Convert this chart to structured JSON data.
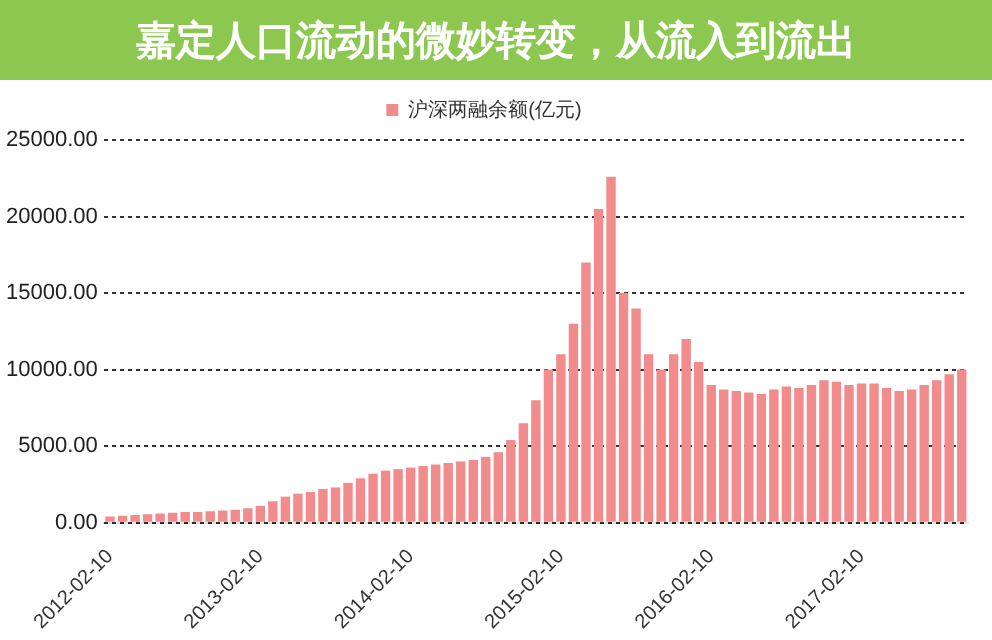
{
  "chart_data": {
    "type": "bar",
    "categories": [
      "2012-02-10",
      null,
      null,
      null,
      null,
      null,
      null,
      null,
      null,
      null,
      null,
      null,
      "2013-02-10",
      null,
      null,
      null,
      null,
      null,
      null,
      null,
      null,
      null,
      null,
      null,
      "2014-02-10",
      null,
      null,
      null,
      null,
      null,
      null,
      null,
      null,
      null,
      null,
      null,
      "2015-02-10",
      null,
      null,
      null,
      null,
      null,
      null,
      null,
      null,
      null,
      null,
      null,
      "2016-02-10",
      null,
      null,
      null,
      null,
      null,
      null,
      null,
      null,
      null,
      null,
      null,
      "2017-02-10",
      null,
      null,
      null,
      null,
      null,
      null,
      null,
      null
    ],
    "series": [
      {
        "name": "沪深两融余额(亿元)",
        "color": "#f28b8b",
        "values": [
          400,
          450,
          500,
          550,
          600,
          650,
          700,
          700,
          750,
          800,
          850,
          950,
          1100,
          1400,
          1700,
          1900,
          2000,
          2200,
          2300,
          2600,
          2900,
          3200,
          3400,
          3500,
          3600,
          3700,
          3800,
          3900,
          4000,
          4100,
          4300,
          4600,
          5400,
          6500,
          8000,
          10000,
          11000,
          13000,
          17000,
          20500,
          22600,
          15000,
          14000,
          11000,
          10000,
          11000,
          12000,
          10500,
          9000,
          8700,
          8600,
          8500,
          8400,
          8700,
          8900,
          8800,
          9000,
          9300,
          9200,
          9000,
          9100,
          9100,
          8800,
          8600,
          8700,
          9000,
          9300,
          9700,
          10000
        ]
      }
    ],
    "ylim": [
      0,
      25000
    ],
    "yticks": [
      {
        "value": 0,
        "label": "0.00"
      },
      {
        "value": 5000,
        "label": "5000.00"
      },
      {
        "value": 10000,
        "label": "10000.00"
      },
      {
        "value": 15000,
        "label": "15000.00"
      },
      {
        "value": 20000,
        "label": "20000.00"
      },
      {
        "value": 25000,
        "label": "25000.00"
      }
    ],
    "grid": "y",
    "legend": "top",
    "annotations": [
      "嘉定人口流动的微妙转变，从流入到流出"
    ]
  }
}
